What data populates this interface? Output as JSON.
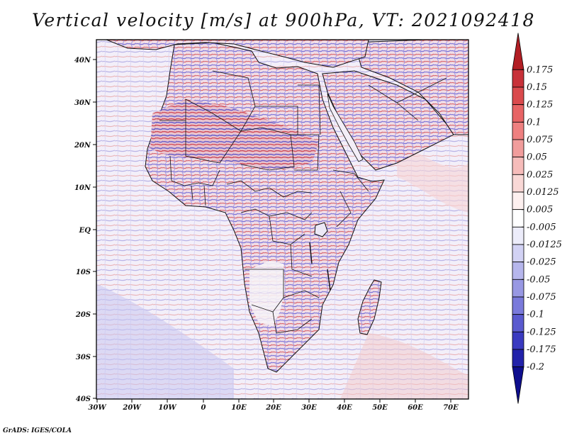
{
  "title": "Vertical velocity [m/s] at 900hPa, VT: 2021092418",
  "credit": "GrADS: IGES/COLA",
  "map": {
    "lon_ticks": [
      "30W",
      "20W",
      "10W",
      "0",
      "10E",
      "20E",
      "30E",
      "40E",
      "50E",
      "60E",
      "70E"
    ],
    "lat_ticks": [
      "40N",
      "30N",
      "20N",
      "10N",
      "EQ",
      "10S",
      "20S",
      "30S",
      "40S"
    ],
    "region": "Africa and Middle East",
    "projection": "lat-lon"
  },
  "colorbar": {
    "labels": [
      "0.175",
      "0.15",
      "0.125",
      "0.1",
      "0.075",
      "0.05",
      "0.025",
      "0.0125",
      "0.005",
      "-0.005",
      "-0.0125",
      "-0.025",
      "-0.05",
      "-0.075",
      "-0.1",
      "-0.125",
      "-0.175",
      "-0.2"
    ],
    "colors": [
      "#b21e24",
      "#c8323a",
      "#da4a4d",
      "#e76465",
      "#ee8080",
      "#f19d9c",
      "#f6bcba",
      "#f9d8d6",
      "#fdf0ef",
      "#ffffff",
      "#ececfa",
      "#d2d2f4",
      "#b6b6ec",
      "#9898e3",
      "#7a7adb",
      "#5a5acf",
      "#3a3ac0",
      "#2222aa",
      "#0e0e8e"
    ]
  },
  "field_colors": {
    "ocean": "#f1eefa",
    "land": "#f6eef2",
    "sahara_red": "#e27a80",
    "sahara_blue": "#6a6ad4"
  }
}
